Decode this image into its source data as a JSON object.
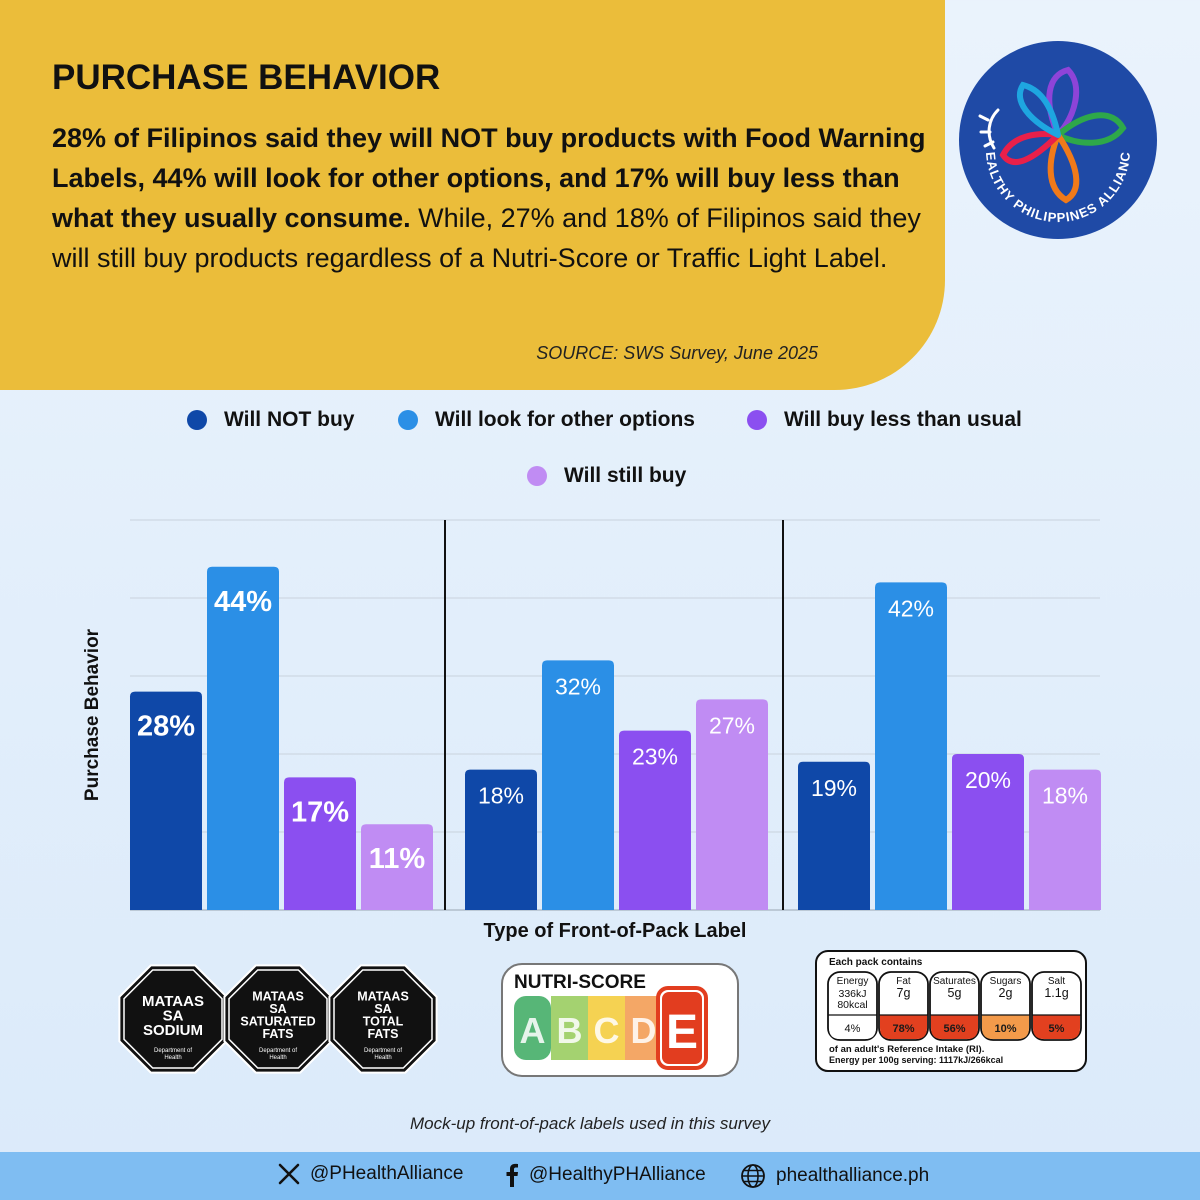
{
  "header": {
    "title": "PURCHASE BEHAVIOR",
    "summary_bold": "28% of Filipinos said they will NOT buy products with Food Warning Labels, 44% will look for other options, and 17% will buy less than what they usually consume.",
    "summary_regular": "While, 27% and 18% of Filipinos said they will still buy products regardless of a Nutri-Score or Traffic Light Label.",
    "source": "SOURCE: SWS Survey, June 2025"
  },
  "logo": {
    "text": "HEALTHY PHILIPPINES ALLIANCE",
    "icon": "flower-logo-icon"
  },
  "colors": {
    "header_bg": "#ebbd3a",
    "will_not_buy": "#0f48a8",
    "look_other": "#2b8fe6",
    "buy_less": "#8b4ff0",
    "still_buy": "#c08cf3",
    "footer_bg": "#7fbdf2"
  },
  "chart_data": {
    "type": "bar",
    "xlabel": "Type of Front-of-Pack Label",
    "ylabel": "Purchase Behavior",
    "ylim": [
      0,
      50
    ],
    "grid": true,
    "legend_position": "top",
    "series": [
      {
        "name": "Will NOT buy",
        "values": [
          28,
          18,
          19
        ]
      },
      {
        "name": "Will look for other options",
        "values": [
          44,
          32,
          42
        ]
      },
      {
        "name": "Will buy less than usual",
        "values": [
          17,
          23,
          20
        ]
      },
      {
        "name": "Will still buy",
        "values": [
          11,
          27,
          18
        ]
      }
    ],
    "data_labels": [
      [
        "28%",
        "44%",
        "17%",
        "11%"
      ],
      [
        "18%",
        "32%",
        "23%",
        "27%"
      ],
      [
        "19%",
        "42%",
        "20%",
        "18%"
      ]
    ]
  },
  "labels": {
    "warning": [
      "MATAAS SA SODIUM",
      "MATAAS SA SATURATED FATS",
      "MATAAS SA TOTAL FATS"
    ],
    "warning_lines": [
      [
        "MATAAS",
        "SA",
        "SODIUM"
      ],
      [
        "MATAAS",
        "SA",
        "SATURATED",
        "FATS"
      ],
      [
        "MATAAS",
        "SA",
        "TOTAL",
        "FATS"
      ]
    ],
    "warning_dept": [
      "Department of",
      "Health"
    ],
    "nutri_title": "NUTRI-SCORE",
    "nutri_letters": [
      "A",
      "B",
      "C",
      "D",
      "E"
    ],
    "traffic": {
      "header": "Each pack contains",
      "cols": [
        {
          "name": "Energy",
          "line1": "336kJ",
          "line2": "80kcal",
          "pct": "4%"
        },
        {
          "name": "Fat",
          "line1": "7g",
          "line2": "",
          "pct": "78%"
        },
        {
          "name": "Saturates",
          "line1": "5g",
          "line2": "",
          "pct": "56%"
        },
        {
          "name": "Sugars",
          "line1": "2g",
          "line2": "",
          "pct": "10%"
        },
        {
          "name": "Salt",
          "line1": "1.1g",
          "line2": "",
          "pct": "5%"
        }
      ],
      "footer1": "of an adult's Reference Intake (RI).",
      "footer2": "Energy per 100g serving: 1117kJ/266kcal"
    },
    "note": "Mock-up front-of-pack labels used in this survey"
  },
  "footer": {
    "x_handle": "@PHealthAlliance",
    "fb_handle": "@HealthyPHAlliance",
    "website": "phealthalliance.ph"
  }
}
